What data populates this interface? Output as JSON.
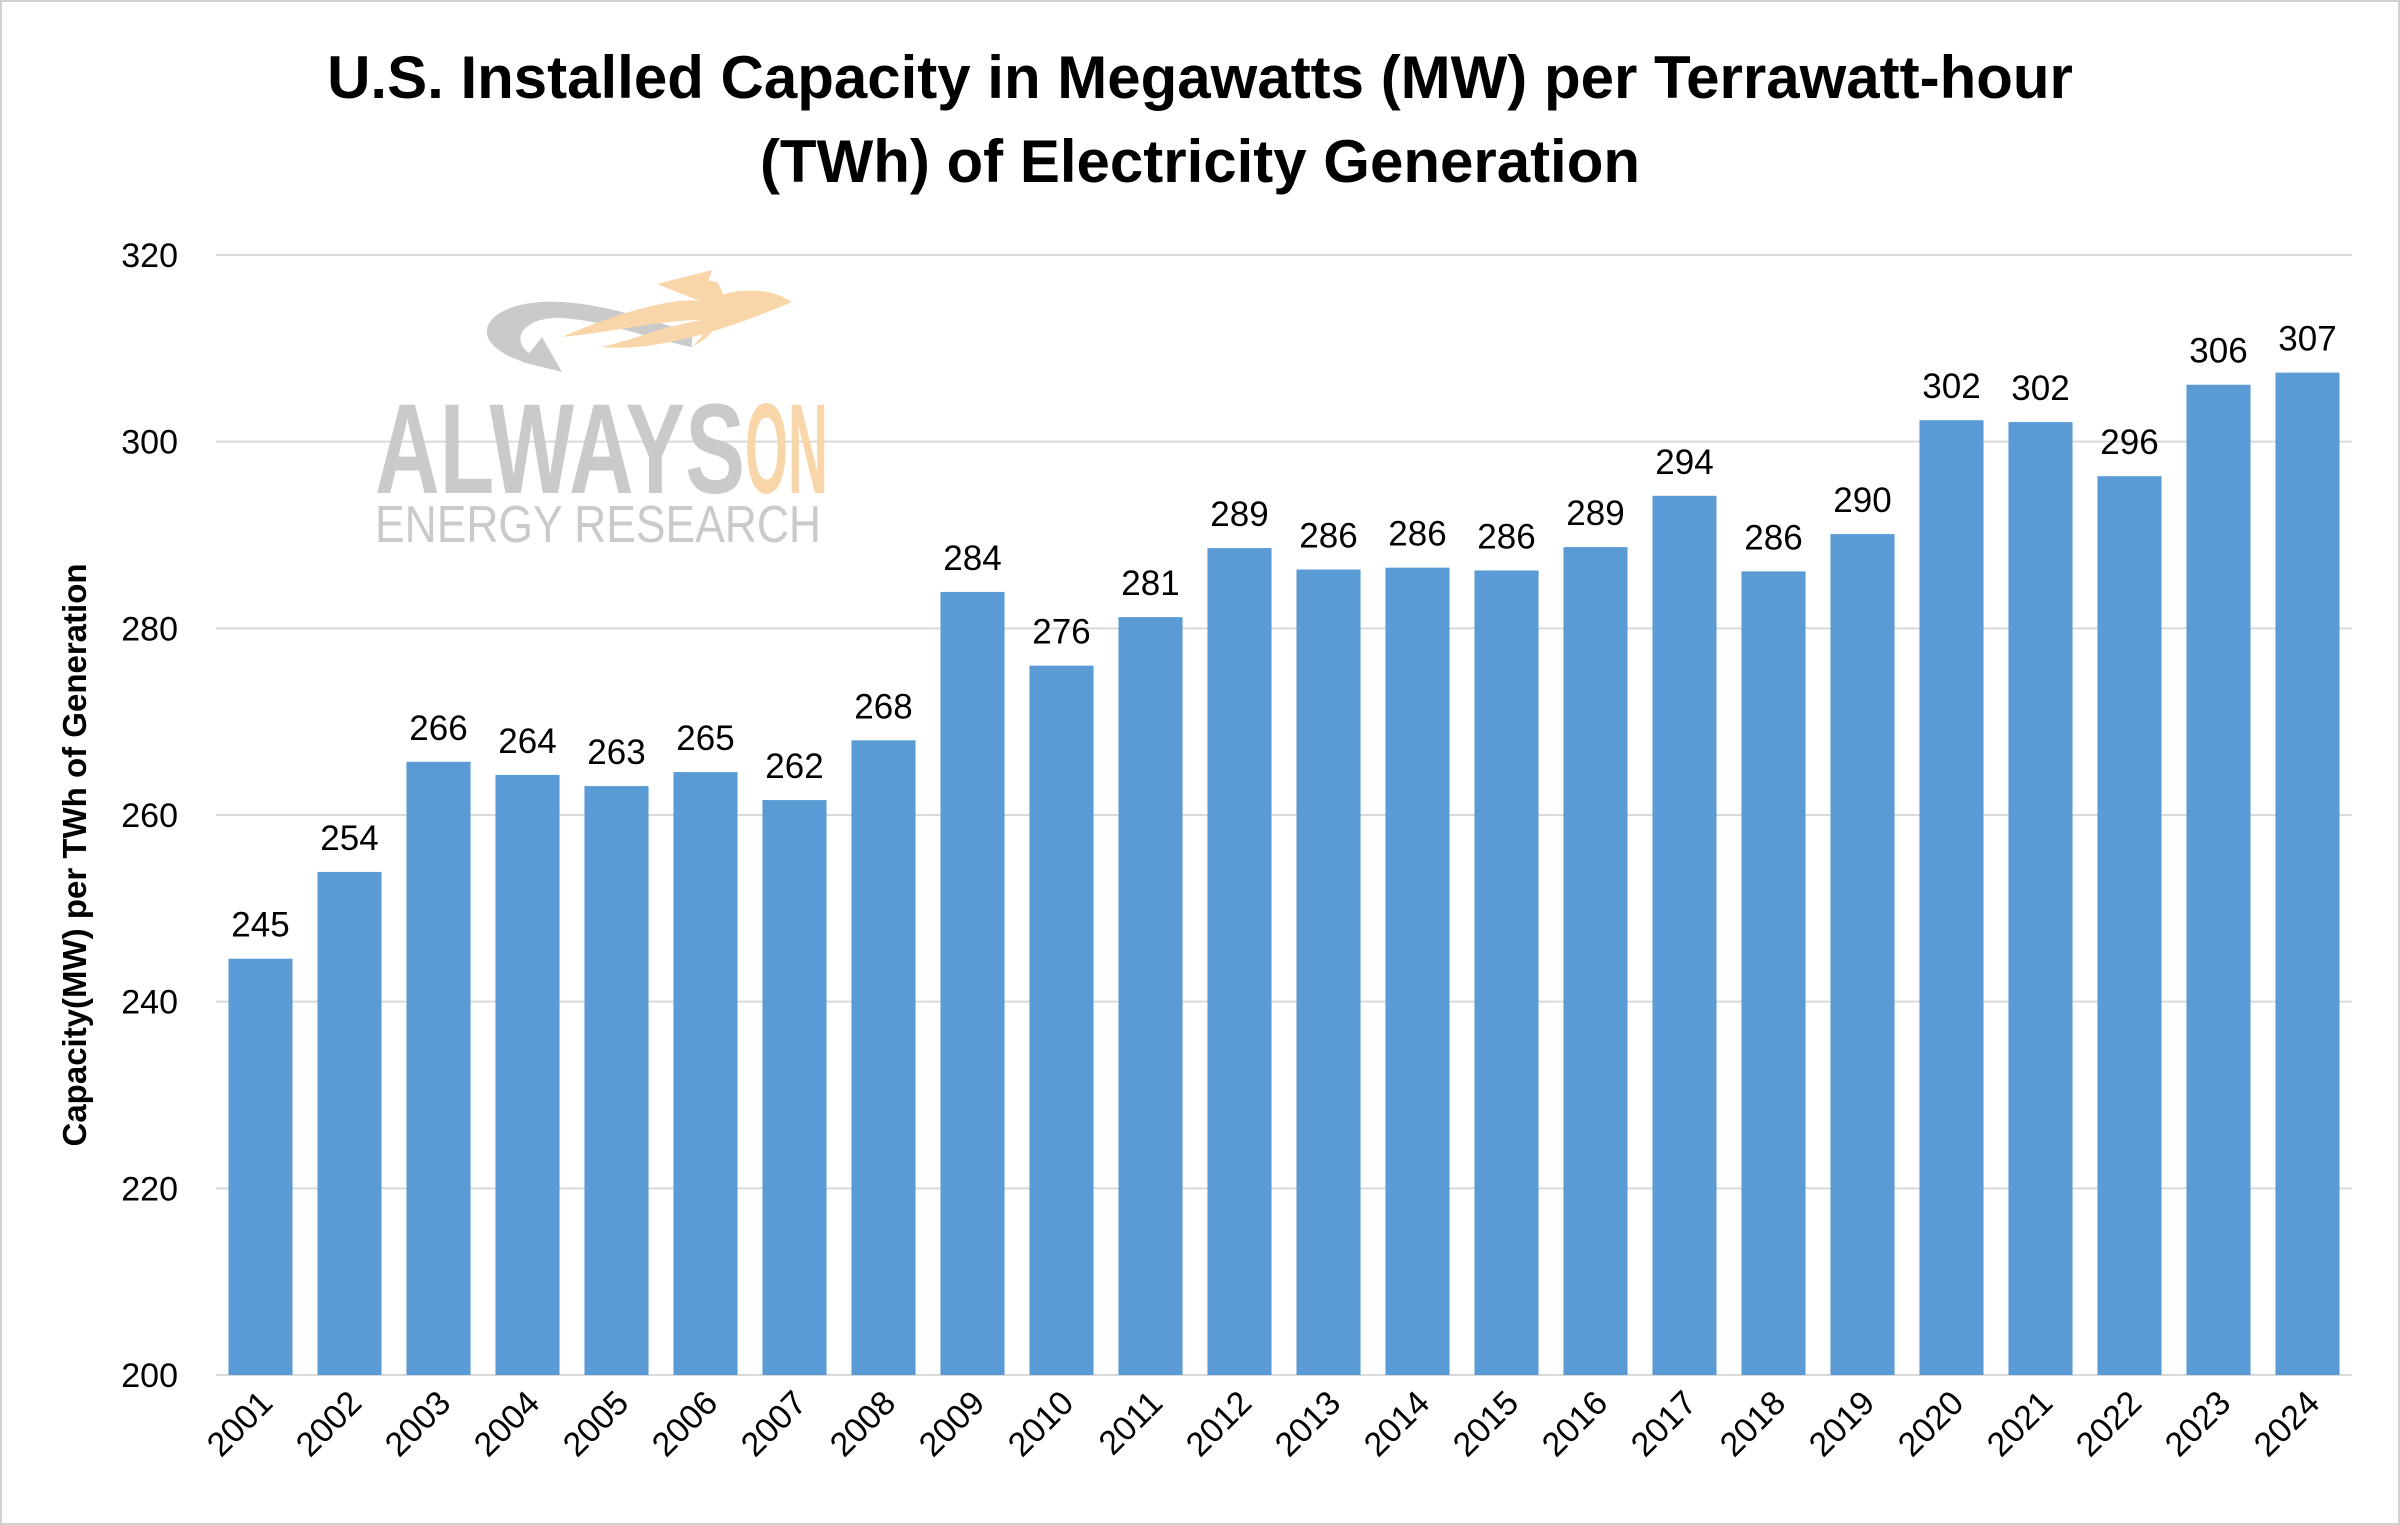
{
  "chart_data": {
    "type": "bar",
    "title": "U.S. Installed Capacity in Megawatts (MW) per Terrawatt-hour (TWh) of Electricity Generation",
    "title_lines": [
      "U.S. Installed Capacity in Megawatts (MW) per Terrawatt-hour",
      "(TWh) of Electricity Generation"
    ],
    "xlabel": "",
    "ylabel": "Capacity(MW) per TWh of Generation",
    "ylim": [
      200,
      320
    ],
    "yticks": [
      200,
      220,
      240,
      260,
      280,
      300,
      320
    ],
    "grid": true,
    "legend": "none",
    "bar_color": "#5b9bd5",
    "categories": [
      "2001",
      "2002",
      "2003",
      "2004",
      "2005",
      "2006",
      "2007",
      "2008",
      "2009",
      "2010",
      "2011",
      "2012",
      "2013",
      "2014",
      "2015",
      "2016",
      "2017",
      "2018",
      "2019",
      "2020",
      "2021",
      "2022",
      "2023",
      "2024"
    ],
    "values": [
      244.6,
      253.9,
      265.7,
      264.3,
      263.1,
      264.6,
      261.6,
      268.0,
      283.9,
      276.0,
      281.2,
      288.6,
      286.3,
      286.5,
      286.2,
      288.7,
      294.2,
      286.1,
      290.1,
      302.3,
      302.1,
      296.3,
      306.1,
      307.4
    ],
    "data_labels": [
      "245",
      "254",
      "266",
      "264",
      "263",
      "265",
      "262",
      "268",
      "284",
      "276",
      "281",
      "289",
      "286",
      "286",
      "286",
      "289",
      "294",
      "286",
      "290",
      "302",
      "302",
      "296",
      "306",
      "307"
    ]
  },
  "watermark": {
    "brand_part1": "ALWAYS",
    "brand_part2": "ON",
    "tagline": "ENERGY RESEARCH",
    "colors": {
      "gray": "#c8c8c8",
      "orange": "#f9d4a6"
    }
  }
}
